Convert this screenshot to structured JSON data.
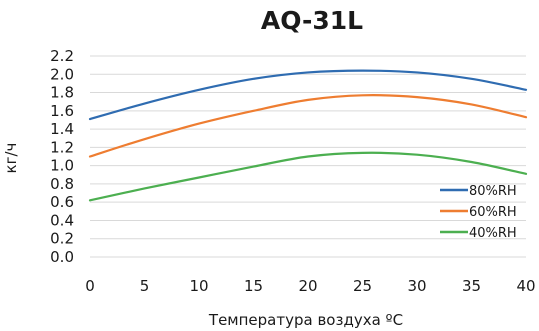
{
  "chart_data": {
    "type": "line",
    "title": "AQ-31L",
    "xlabel": "Температура воздуха ºC",
    "ylabel": "кг/ч",
    "xlim": [
      0,
      40
    ],
    "ylim": [
      0,
      2.2
    ],
    "x_ticks": [
      "0",
      "5",
      "10",
      "15",
      "20",
      "25",
      "30",
      "35",
      "40"
    ],
    "y_ticks": [
      "0.0",
      "0.2",
      "0.4",
      "0.6",
      "0.8",
      "1.0",
      "1.2",
      "1.4",
      "1.6",
      "1.8",
      "2.0",
      "2.2"
    ],
    "grid": "horizontal",
    "legend_position": "bottom-right",
    "x": [
      0,
      5,
      10,
      15,
      20,
      25,
      30,
      35,
      40
    ],
    "series": [
      {
        "name": "80%RH",
        "color": "#2f6cb1",
        "values": [
          1.51,
          1.68,
          1.83,
          1.95,
          2.02,
          2.04,
          2.02,
          1.95,
          1.83
        ]
      },
      {
        "name": "60%RH",
        "color": "#ee7d31",
        "values": [
          1.1,
          1.29,
          1.46,
          1.6,
          1.72,
          1.77,
          1.75,
          1.67,
          1.53
        ]
      },
      {
        "name": "40%RH",
        "color": "#4caf50",
        "values": [
          0.62,
          0.75,
          0.87,
          0.99,
          1.1,
          1.14,
          1.12,
          1.04,
          0.91
        ]
      }
    ]
  }
}
